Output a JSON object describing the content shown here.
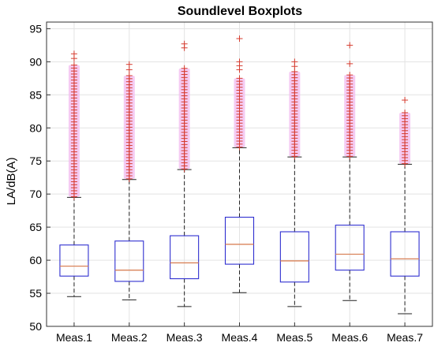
{
  "chart_data": {
    "type": "boxplot",
    "title": "Soundlevel Boxplots",
    "xlabel": "",
    "ylabel": "LA/dB(A)",
    "ylim": [
      50,
      96
    ],
    "yticks": [
      50,
      55,
      60,
      65,
      70,
      75,
      80,
      85,
      90,
      95
    ],
    "grid": true,
    "categories": [
      "Meas.1",
      "Meas.2",
      "Meas.3",
      "Meas.4",
      "Meas.5",
      "Meas.6",
      "Meas.7"
    ],
    "boxes": [
      {
        "name": "Meas.1",
        "whisker_low": 54.5,
        "q1": 57.6,
        "median": 59.1,
        "q3": 62.3,
        "whisker_high": 69.5,
        "outlier_min": 69.6,
        "outlier_max": 89.5,
        "extra_outliers": [
          90.5,
          91.2
        ]
      },
      {
        "name": "Meas.2",
        "whisker_low": 54.0,
        "q1": 56.8,
        "median": 58.5,
        "q3": 62.9,
        "whisker_high": 72.2,
        "outlier_min": 72.3,
        "outlier_max": 87.9,
        "extra_outliers": [
          88.8,
          89.6
        ]
      },
      {
        "name": "Meas.3",
        "whisker_low": 53.0,
        "q1": 57.2,
        "median": 59.6,
        "q3": 63.7,
        "whisker_high": 73.7,
        "outlier_min": 73.8,
        "outlier_max": 89.0,
        "extra_outliers": [
          92.1,
          92.7
        ]
      },
      {
        "name": "Meas.4",
        "whisker_low": 55.1,
        "q1": 59.4,
        "median": 62.4,
        "q3": 66.5,
        "whisker_high": 77.0,
        "outlier_min": 77.1,
        "outlier_max": 87.5,
        "extra_outliers": [
          88.8,
          89.4,
          90.0,
          93.5
        ]
      },
      {
        "name": "Meas.5",
        "whisker_low": 53.0,
        "q1": 56.7,
        "median": 59.9,
        "q3": 64.3,
        "whisker_high": 75.6,
        "outlier_min": 75.7,
        "outlier_max": 88.5,
        "extra_outliers": [
          89.3,
          90.0
        ]
      },
      {
        "name": "Meas.6",
        "whisker_low": 53.9,
        "q1": 58.5,
        "median": 60.9,
        "q3": 65.3,
        "whisker_high": 75.6,
        "outlier_min": 75.7,
        "outlier_max": 88.0,
        "extra_outliers": [
          89.7,
          92.5
        ]
      },
      {
        "name": "Meas.7",
        "whisker_low": 51.9,
        "q1": 57.6,
        "median": 60.2,
        "q3": 64.3,
        "whisker_high": 74.5,
        "outlier_min": 74.6,
        "outlier_max": 82.3,
        "extra_outliers": [
          84.2
        ]
      }
    ]
  },
  "colors": {
    "box": "#2f2fd0",
    "median": "#d9835a",
    "outlier": "#d63c2f",
    "outlier_band": "#f2b9ef",
    "whisker": "#222222",
    "grid": "#e3e3e3"
  }
}
